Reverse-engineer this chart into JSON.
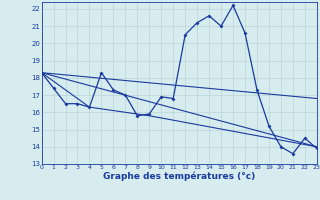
{
  "xlabel": "Graphe des températures (°c)",
  "x_ticks": [
    0,
    1,
    2,
    3,
    4,
    5,
    6,
    7,
    8,
    9,
    10,
    11,
    12,
    13,
    14,
    15,
    16,
    17,
    18,
    19,
    20,
    21,
    22,
    23
  ],
  "y_ticks": [
    13,
    14,
    15,
    16,
    17,
    18,
    19,
    20,
    21,
    22
  ],
  "xlim": [
    0,
    23
  ],
  "ylim": [
    13,
    22.4
  ],
  "bg_color": "#d6ecee",
  "grid_color": "#b8d4d8",
  "line_color": "#1a3a9e",
  "series1_x": [
    0,
    1,
    2,
    3,
    4,
    5,
    6,
    7,
    8,
    9,
    10,
    11,
    12,
    13,
    14,
    15,
    16,
    17,
    18,
    19,
    20,
    21,
    22,
    23
  ],
  "series1_y": [
    18.3,
    17.4,
    16.5,
    16.5,
    16.3,
    18.3,
    17.3,
    17.0,
    15.8,
    15.9,
    16.9,
    16.8,
    20.5,
    21.2,
    21.6,
    21.0,
    22.2,
    20.6,
    17.3,
    15.2,
    14.0,
    13.6,
    14.5,
    13.9
  ],
  "series2_x": [
    0,
    23
  ],
  "series2_y": [
    18.3,
    14.0
  ],
  "series3_x": [
    0,
    23
  ],
  "series3_y": [
    18.3,
    16.8
  ],
  "series4_x": [
    0,
    4,
    9,
    23
  ],
  "series4_y": [
    18.3,
    16.3,
    15.8,
    14.0
  ]
}
